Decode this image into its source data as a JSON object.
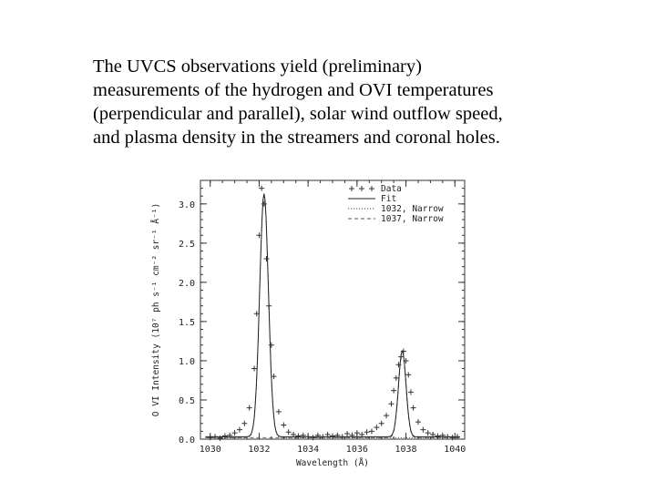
{
  "caption": {
    "lines": [
      "The UVCS observations yield (preliminary)",
      "measurements of the hydrogen and OVI temperatures",
      "(perpendicular and parallel), solar wind outflow speed,",
      "and plasma density in the streamers and coronal holes."
    ]
  },
  "chart_data": {
    "type": "line",
    "xlabel": "Wavelength (Å)",
    "ylabel": "O VI Intensity (10⁷ ph s⁻¹ cm⁻² sr⁻¹ Å⁻¹)",
    "xlim": [
      1029.6,
      1040.4
    ],
    "ylim": [
      0.0,
      3.3
    ],
    "xticks": [
      1030,
      1032,
      1034,
      1036,
      1038,
      1040
    ],
    "xtick_labels": [
      "1030",
      "1032",
      "1034",
      "1036",
      "1038",
      "1040"
    ],
    "yticks": [
      0.0,
      0.5,
      1.0,
      1.5,
      2.0,
      2.5,
      3.0
    ],
    "ytick_labels": [
      "0.0",
      "0.5",
      "1.0",
      "1.5",
      "2.0",
      "2.5",
      "3.0"
    ],
    "grid": false,
    "legend_position": "top-right",
    "series": [
      {
        "name": "Data",
        "style": "plus-markers",
        "color": "#333333",
        "x": [
          1030.0,
          1030.2,
          1030.4,
          1030.6,
          1030.8,
          1031.0,
          1031.2,
          1031.4,
          1031.6,
          1031.8,
          1031.9,
          1032.0,
          1032.1,
          1032.2,
          1032.3,
          1032.4,
          1032.5,
          1032.6,
          1032.8,
          1033.0,
          1033.2,
          1033.4,
          1033.6,
          1033.8,
          1034.0,
          1034.2,
          1034.4,
          1034.6,
          1034.8,
          1035.0,
          1035.2,
          1035.4,
          1035.6,
          1035.8,
          1036.0,
          1036.2,
          1036.4,
          1036.6,
          1036.8,
          1037.0,
          1037.2,
          1037.4,
          1037.5,
          1037.6,
          1037.7,
          1037.8,
          1037.9,
          1038.0,
          1038.1,
          1038.2,
          1038.3,
          1038.5,
          1038.7,
          1038.9,
          1039.1,
          1039.3,
          1039.5,
          1039.7,
          1039.9,
          1040.1
        ],
        "values": [
          0.02,
          0.03,
          0.01,
          0.04,
          0.05,
          0.08,
          0.12,
          0.2,
          0.4,
          0.9,
          1.6,
          2.6,
          3.2,
          3.0,
          2.3,
          1.7,
          1.2,
          0.8,
          0.35,
          0.18,
          0.09,
          0.06,
          0.04,
          0.05,
          0.03,
          0.02,
          0.05,
          0.03,
          0.06,
          0.04,
          0.05,
          0.03,
          0.07,
          0.05,
          0.08,
          0.06,
          0.09,
          0.1,
          0.15,
          0.2,
          0.3,
          0.45,
          0.62,
          0.78,
          0.95,
          1.05,
          1.12,
          1.0,
          0.82,
          0.6,
          0.4,
          0.22,
          0.12,
          0.08,
          0.06,
          0.04,
          0.05,
          0.03,
          0.02,
          0.03
        ]
      },
      {
        "name": "Fit",
        "style": "solid",
        "color": "#222222"
      },
      {
        "name": "1032, Narrow",
        "style": "dotted",
        "color": "#444444",
        "center": 1032.2,
        "peak": 3.1,
        "width": 0.42
      },
      {
        "name": "1037, Narrow",
        "style": "dashed",
        "color": "#555555",
        "center": 1037.85,
        "peak": 1.1,
        "width": 0.36
      }
    ]
  }
}
